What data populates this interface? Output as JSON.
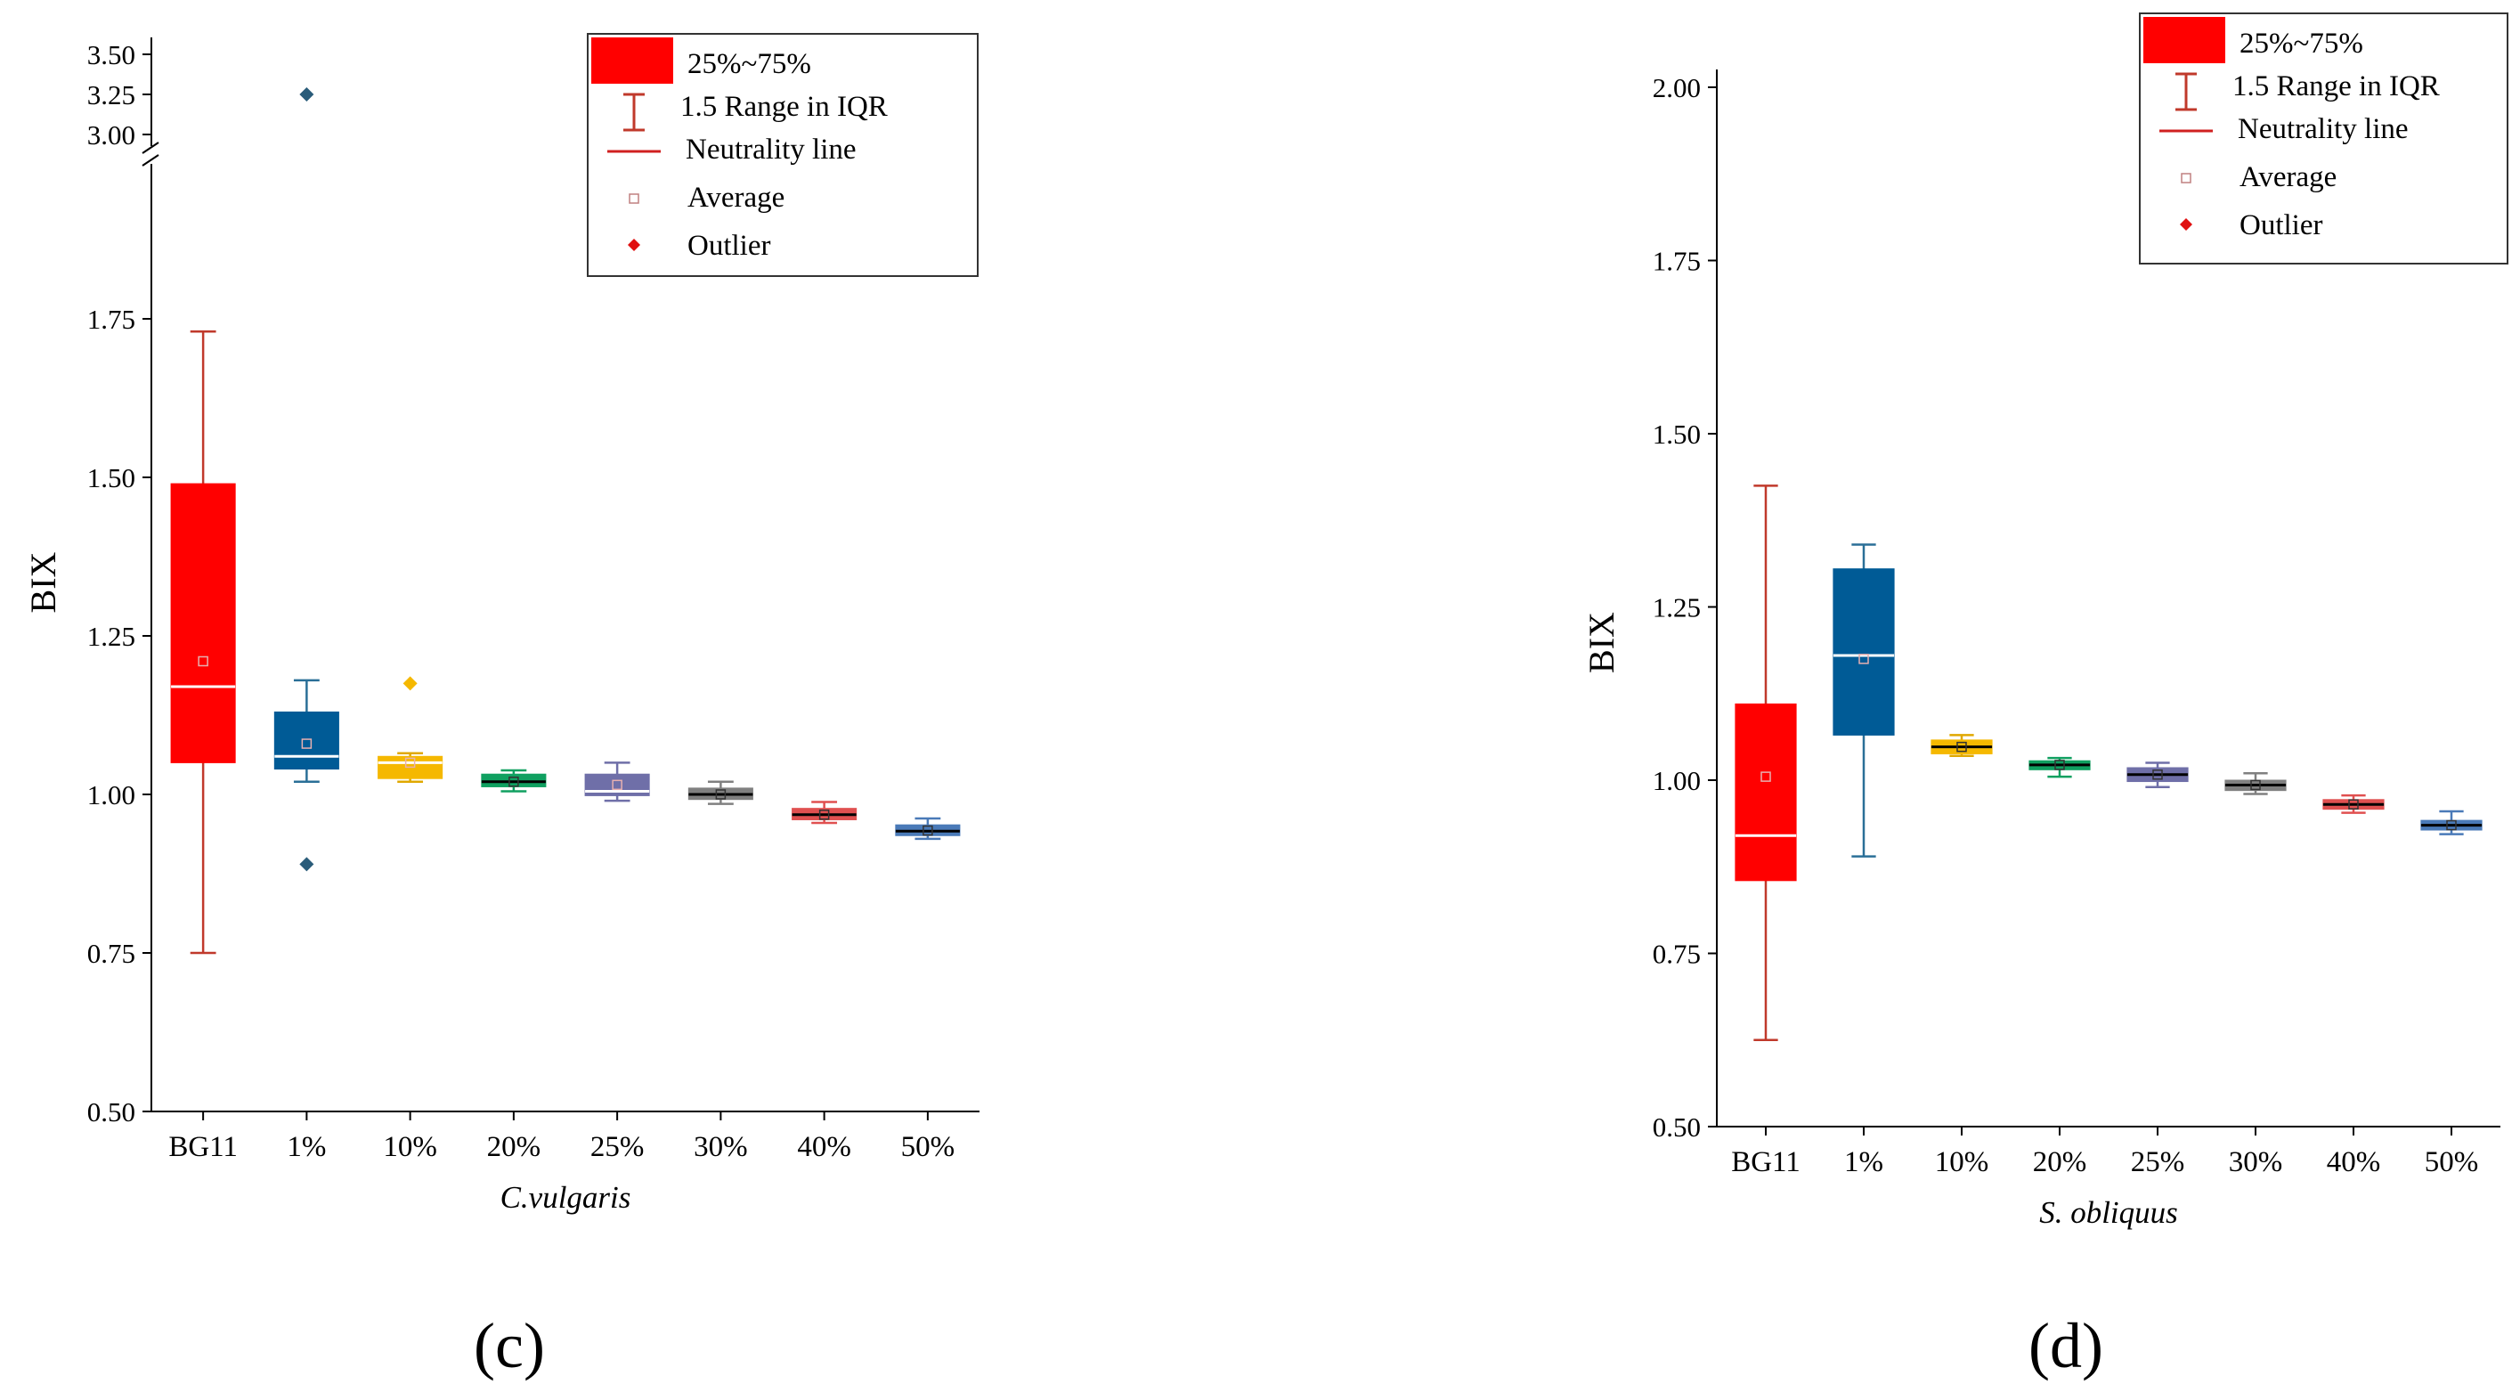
{
  "chart_data": [
    {
      "type": "box",
      "panel_label": "(c)",
      "xlabel": "C.vulgaris",
      "ylabel": "BIX",
      "categories": [
        "BG11",
        "1%",
        "10%",
        "20%",
        "25%",
        "30%",
        "40%",
        "50%"
      ],
      "ylim_lower": [
        0.5,
        2.0
      ],
      "ylim_upper": [
        2.95,
        3.55
      ],
      "yticks_lower": [
        "0.50",
        "0.75",
        "1.00",
        "1.25",
        "1.50",
        "1.75"
      ],
      "yticks_upper": [
        "3.00",
        "3.25",
        "3.50"
      ],
      "axis_break": true,
      "boxes": [
        {
          "category": "BG11",
          "color": "#ff0000",
          "whisker_color": "#c0392b",
          "min": 0.75,
          "q1": 1.05,
          "median": 1.17,
          "q3": 1.49,
          "max": 1.73,
          "mean": 1.21,
          "outliers": []
        },
        {
          "category": "1%",
          "color": "#005b96",
          "whisker_color": "#2a6f97",
          "min": 1.02,
          "q1": 1.04,
          "median": 1.06,
          "q3": 1.13,
          "max": 1.18,
          "mean": 1.08,
          "outliers": [
            0.89,
            3.25
          ]
        },
        {
          "category": "10%",
          "color": "#f5b800",
          "whisker_color": "#e0a800",
          "min": 1.02,
          "q1": 1.025,
          "median": 1.05,
          "q3": 1.06,
          "max": 1.065,
          "mean": 1.05,
          "outliers": [
            1.175
          ]
        },
        {
          "category": "20%",
          "color": "#10a060",
          "whisker_color": "#10a060",
          "min": 1.005,
          "q1": 1.012,
          "median": 1.02,
          "q3": 1.032,
          "max": 1.038,
          "mean": 1.02,
          "outliers": []
        },
        {
          "category": "25%",
          "color": "#6f6fa8",
          "whisker_color": "#6f6fa8",
          "min": 0.99,
          "q1": 0.998,
          "median": 1.005,
          "q3": 1.032,
          "max": 1.05,
          "mean": 1.015,
          "outliers": []
        },
        {
          "category": "30%",
          "color": "#808080",
          "whisker_color": "#808080",
          "min": 0.985,
          "q1": 0.992,
          "median": 1.0,
          "q3": 1.01,
          "max": 1.02,
          "mean": 1.0,
          "outliers": []
        },
        {
          "category": "40%",
          "color": "#e05050",
          "whisker_color": "#e05050",
          "min": 0.955,
          "q1": 0.96,
          "median": 0.968,
          "q3": 0.978,
          "max": 0.988,
          "mean": 0.968,
          "outliers": []
        },
        {
          "category": "50%",
          "color": "#4a7ab8",
          "whisker_color": "#4a7ab8",
          "min": 0.93,
          "q1": 0.935,
          "median": 0.942,
          "q3": 0.952,
          "max": 0.962,
          "mean": 0.943,
          "outliers": []
        }
      ],
      "legend": {
        "position": "top-right",
        "entries": [
          "25%~75%",
          "1.5 Range in IQR",
          "Neutrality line",
          "Average",
          "Outlier"
        ]
      }
    },
    {
      "type": "box",
      "panel_label": "(d)",
      "xlabel": "S. obliquus",
      "ylabel": "BIX",
      "categories": [
        "BG11",
        "1%",
        "10%",
        "20%",
        "25%",
        "30%",
        "40%",
        "50%"
      ],
      "ylim": [
        0.5,
        2.0
      ],
      "yticks": [
        "0.50",
        "0.75",
        "1.00",
        "1.25",
        "1.50",
        "1.75",
        "2.00"
      ],
      "boxes": [
        {
          "category": "BG11",
          "color": "#ff0000",
          "whisker_color": "#c0392b",
          "min": 0.625,
          "q1": 0.855,
          "median": 0.92,
          "q3": 1.11,
          "max": 1.425,
          "mean": 1.005,
          "outliers": []
        },
        {
          "category": "1%",
          "color": "#005b96",
          "whisker_color": "#2a6f97",
          "min": 0.89,
          "q1": 1.065,
          "median": 1.18,
          "q3": 1.305,
          "max": 1.34,
          "mean": 1.175,
          "outliers": []
        },
        {
          "category": "10%",
          "color": "#f5b800",
          "whisker_color": "#e0a800",
          "min": 1.035,
          "q1": 1.038,
          "median": 1.048,
          "q3": 1.058,
          "max": 1.065,
          "mean": 1.048,
          "outliers": []
        },
        {
          "category": "20%",
          "color": "#10a060",
          "whisker_color": "#10a060",
          "min": 1.005,
          "q1": 1.015,
          "median": 1.022,
          "q3": 1.028,
          "max": 1.032,
          "mean": 1.022,
          "outliers": []
        },
        {
          "category": "25%",
          "color": "#6f6fa8",
          "whisker_color": "#6f6fa8",
          "min": 0.99,
          "q1": 0.998,
          "median": 1.008,
          "q3": 1.018,
          "max": 1.025,
          "mean": 1.008,
          "outliers": []
        },
        {
          "category": "30%",
          "color": "#808080",
          "whisker_color": "#808080",
          "min": 0.98,
          "q1": 0.985,
          "median": 0.993,
          "q3": 1.0,
          "max": 1.01,
          "mean": 0.993,
          "outliers": []
        },
        {
          "category": "40%",
          "color": "#e05050",
          "whisker_color": "#e05050",
          "min": 0.953,
          "q1": 0.958,
          "median": 0.965,
          "q3": 0.972,
          "max": 0.978,
          "mean": 0.965,
          "outliers": []
        },
        {
          "category": "50%",
          "color": "#4a7ab8",
          "whisker_color": "#4a7ab8",
          "min": 0.922,
          "q1": 0.928,
          "median": 0.935,
          "q3": 0.942,
          "max": 0.955,
          "mean": 0.935,
          "outliers": []
        }
      ],
      "legend": {
        "position": "top-right",
        "entries": [
          "25%~75%",
          "1.5 Range in IQR",
          "Neutrality line",
          "Average",
          "Outlier"
        ]
      }
    }
  ]
}
